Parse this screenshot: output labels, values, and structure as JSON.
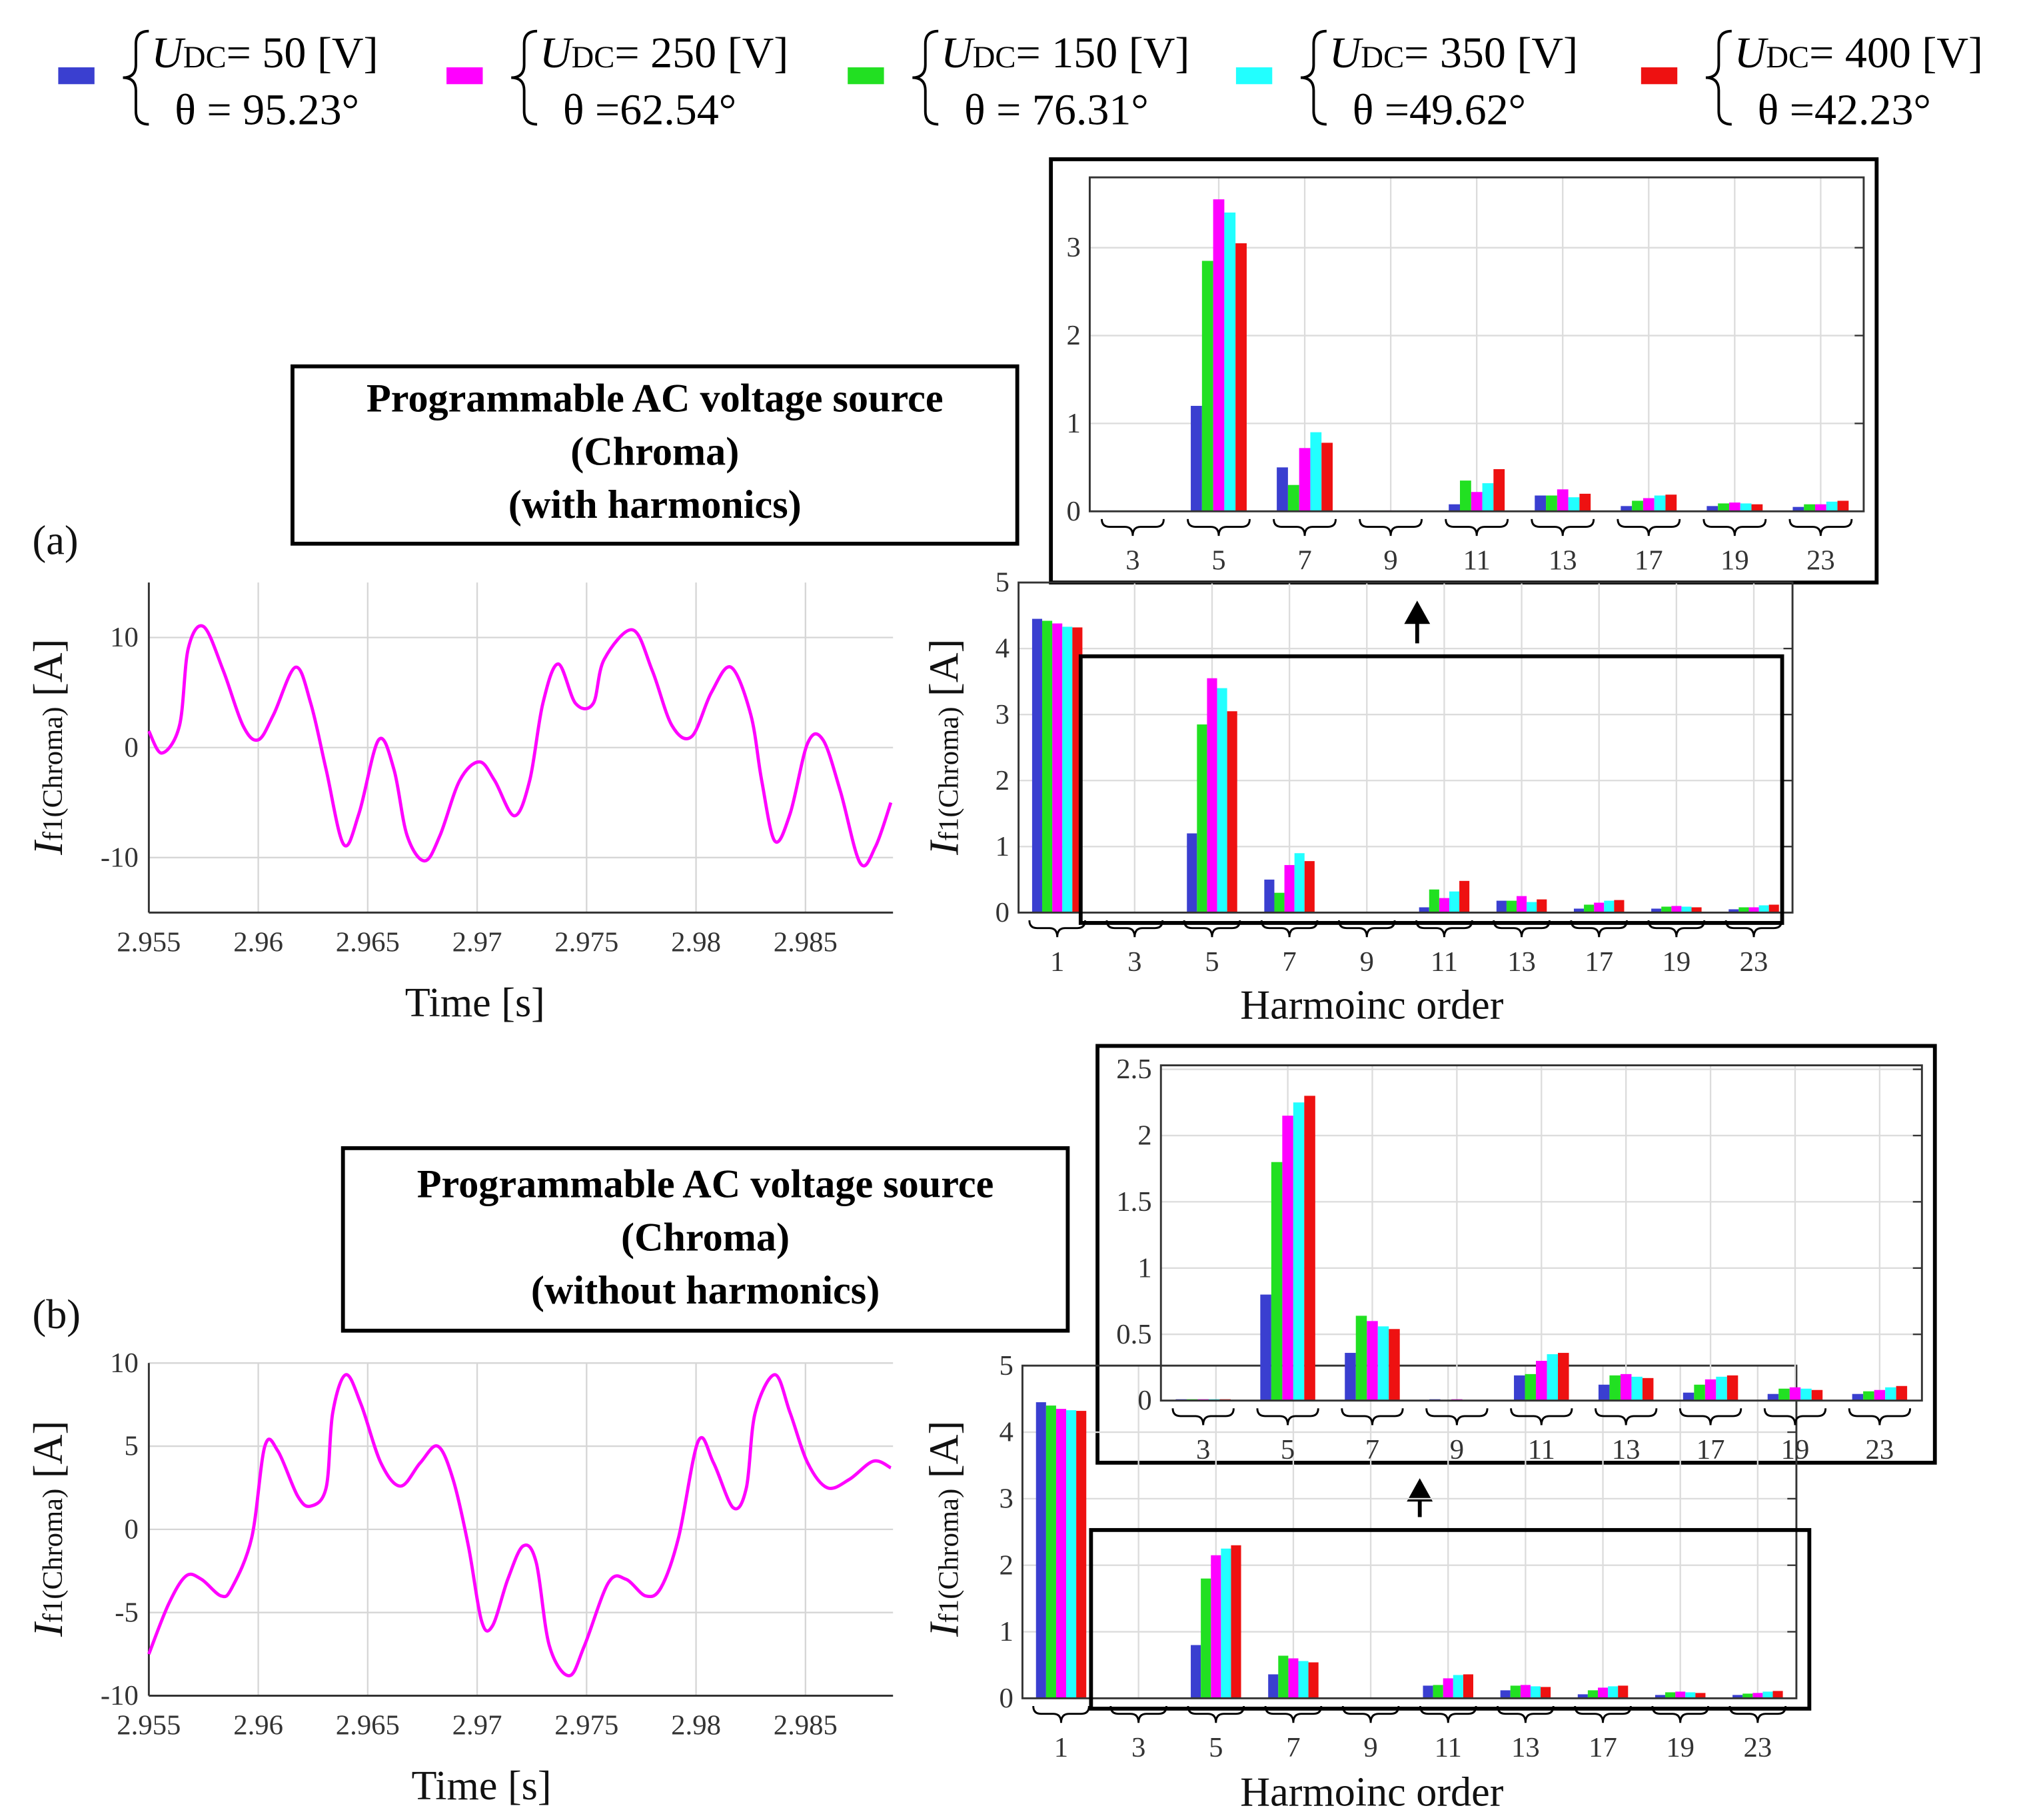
{
  "legend": [
    {
      "color": "#3a3fd0",
      "symbol": "U",
      "subscript": "DC",
      "udc": "= 50  [V]",
      "theta": "θ  = 95.23°"
    },
    {
      "color": "#ff00ff",
      "symbol": "U",
      "subscript": "DC",
      "udc": "= 250 [V]",
      "theta": "θ  =62.54°"
    },
    {
      "color": "#22e022",
      "symbol": "U",
      "subscript": "DC",
      "udc": "= 150 [V]",
      "theta": "θ  = 76.31°"
    },
    {
      "color": "#22ffff",
      "symbol": "U",
      "subscript": "DC",
      "udc": "= 350 [V]",
      "theta": "θ  =49.62°"
    },
    {
      "color": "#ee1111",
      "symbol": "U",
      "subscript": "DC",
      "udc": "=  400 [V]",
      "theta": "θ  =42.23°"
    }
  ],
  "panels": [
    {
      "label": "(a)",
      "source_box": [
        "Programmable AC voltage source",
        "(Chroma)",
        "(with harmonics)"
      ]
    },
    {
      "label": "(b)",
      "source_box": [
        "Programmable AC voltage source",
        "(Chroma)",
        "(without harmonics)"
      ]
    }
  ],
  "chart_data": [
    {
      "type": "line",
      "xlabel": "Time [s]",
      "ylabel": {
        "symbol": "I",
        "subscript": "f1(Chroma)",
        "unit": "[A]"
      },
      "x": [
        2.955,
        2.9556,
        2.9564,
        2.9568,
        2.9575,
        2.9584,
        2.9593,
        2.96,
        2.9607,
        2.9617,
        2.9624,
        2.9631,
        2.9639,
        2.9646,
        2.9655,
        2.9662,
        2.9668,
        2.9676,
        2.9683,
        2.9692,
        2.9701,
        2.9708,
        2.9717,
        2.9724,
        2.973,
        2.9737,
        2.9745,
        2.9753,
        2.9758,
        2.9771,
        2.978,
        2.9789,
        2.9798,
        2.9807,
        2.9816,
        2.9825,
        2.983,
        2.9836,
        2.9843,
        2.9851,
        2.9858,
        2.9866,
        2.9875,
        2.9882,
        2.9889
      ],
      "series": [
        {
          "color": "#ff00ff",
          "values": [
            1.5,
            -0.5,
            2,
            9,
            11,
            7,
            2,
            0.7,
            3,
            7.3,
            4,
            -2,
            -8.8,
            -6,
            0.7,
            -2,
            -8,
            -10.3,
            -8,
            -3,
            -1.3,
            -3,
            -6.2,
            -3,
            4,
            7.6,
            4,
            4,
            8,
            10.7,
            7,
            2,
            1,
            5,
            7.3,
            3,
            -3,
            -8.5,
            -6,
            0.4,
            0.7,
            -4,
            -10.5,
            -9,
            -5
          ]
        }
      ],
      "xlim": [
        2.955,
        2.989
      ],
      "ylim": [
        -15,
        15
      ],
      "xticks": [
        2.955,
        2.96,
        2.965,
        2.97,
        2.975,
        2.98,
        2.985
      ],
      "yticks": [
        -10,
        0,
        10
      ],
      "grid": true
    },
    {
      "type": "bar",
      "xlabel": "Harmoinc order",
      "ylabel": {
        "symbol": "I",
        "subscript": "f1(Chroma)",
        "unit": "[A]"
      },
      "categories": [
        "1",
        "3",
        "5",
        "7",
        "9",
        "11",
        "13",
        "17",
        "19",
        "23"
      ],
      "series": [
        {
          "values": [
            4.45,
            0.01,
            1.2,
            0.5,
            0.01,
            0.08,
            0.18,
            0.06,
            0.06,
            0.05
          ]
        },
        {
          "values": [
            4.38,
            0.01,
            3.55,
            0.72,
            0.01,
            0.22,
            0.25,
            0.15,
            0.1,
            0.08
          ]
        },
        {
          "values": [
            4.42,
            0.01,
            2.85,
            0.3,
            0.01,
            0.35,
            0.18,
            0.12,
            0.09,
            0.08
          ]
        },
        {
          "values": [
            4.33,
            0.01,
            3.4,
            0.9,
            0.01,
            0.32,
            0.16,
            0.18,
            0.09,
            0.11
          ]
        },
        {
          "values": [
            4.32,
            0.01,
            3.05,
            0.78,
            0.01,
            0.48,
            0.2,
            0.19,
            0.08,
            0.12
          ]
        }
      ],
      "ylim": [
        0,
        5
      ],
      "yticks": [
        0,
        1,
        2,
        3,
        4,
        5
      ],
      "grid": true
    },
    {
      "type": "bar",
      "categories": [
        "3",
        "5",
        "7",
        "9",
        "11",
        "13",
        "17",
        "19",
        "23"
      ],
      "series": [
        {
          "values": [
            0.01,
            1.2,
            0.5,
            0.01,
            0.08,
            0.18,
            0.06,
            0.06,
            0.05
          ]
        },
        {
          "values": [
            0.01,
            3.55,
            0.72,
            0.01,
            0.22,
            0.25,
            0.15,
            0.1,
            0.08
          ]
        },
        {
          "values": [
            0.01,
            2.85,
            0.3,
            0.01,
            0.35,
            0.18,
            0.12,
            0.09,
            0.08
          ]
        },
        {
          "values": [
            0.01,
            3.4,
            0.9,
            0.01,
            0.32,
            0.16,
            0.18,
            0.09,
            0.11
          ]
        },
        {
          "values": [
            0.01,
            3.05,
            0.78,
            0.01,
            0.48,
            0.2,
            0.19,
            0.08,
            0.12
          ]
        }
      ],
      "ylim": [
        0,
        3.8
      ],
      "yticks": [
        0,
        1,
        2,
        3
      ],
      "grid": true
    },
    {
      "type": "line",
      "xlabel": "Time [s]",
      "ylabel": {
        "symbol": "I",
        "subscript": "f1(Chroma)",
        "unit": "[A]"
      },
      "x": [
        2.955,
        2.9559,
        2.9567,
        2.9574,
        2.9583,
        2.9588,
        2.9597,
        2.9603,
        2.9609,
        2.9618,
        2.9624,
        2.9631,
        2.9634,
        2.964,
        2.9647,
        2.9656,
        2.9665,
        2.9674,
        2.9682,
        2.9689,
        2.9696,
        2.9702,
        2.9707,
        2.9714,
        2.9721,
        2.9727,
        2.9733,
        2.9742,
        2.9749,
        2.976,
        2.9768,
        2.9777,
        2.9784,
        2.9792,
        2.9801,
        2.9808,
        2.9817,
        2.9823,
        2.9827,
        2.9836,
        2.9843,
        2.9851,
        2.986,
        2.987,
        2.9881,
        2.9889
      ],
      "series": [
        {
          "color": "#ff00ff",
          "values": [
            -7.5,
            -4.5,
            -2.8,
            -3,
            -4,
            -3.5,
            -0.5,
            5,
            4.7,
            2,
            1.4,
            2.5,
            7,
            9.3,
            7.5,
            4,
            2.6,
            4,
            5,
            3,
            -1,
            -5.5,
            -5.8,
            -3,
            -1,
            -2,
            -7,
            -8.8,
            -7,
            -3.2,
            -3,
            -4,
            -3.5,
            -0.5,
            5.3,
            4,
            1.3,
            2.5,
            7,
            9.3,
            7,
            4,
            2.5,
            3,
            4.1,
            3.7
          ]
        }
      ],
      "xlim": [
        2.955,
        2.989
      ],
      "ylim": [
        -10,
        10
      ],
      "xticks": [
        2.955,
        2.96,
        2.965,
        2.97,
        2.975,
        2.98,
        2.985
      ],
      "yticks": [
        -10,
        -5,
        0,
        5,
        10
      ],
      "grid": true
    },
    {
      "type": "bar",
      "xlabel": "Harmoinc order",
      "ylabel": {
        "symbol": "I",
        "subscript": "f1(Chroma)",
        "unit": "[A]"
      },
      "categories": [
        "1",
        "3",
        "5",
        "7",
        "9",
        "11",
        "13",
        "17",
        "19",
        "23"
      ],
      "series": [
        {
          "values": [
            4.45,
            0.01,
            0.8,
            0.36,
            0.01,
            0.19,
            0.12,
            0.06,
            0.05,
            0.05
          ]
        },
        {
          "values": [
            4.35,
            0.01,
            2.15,
            0.6,
            0.01,
            0.3,
            0.2,
            0.16,
            0.1,
            0.08
          ]
        },
        {
          "values": [
            4.4,
            0.01,
            1.8,
            0.64,
            0.005,
            0.2,
            0.19,
            0.12,
            0.09,
            0.07
          ]
        },
        {
          "values": [
            4.33,
            0.01,
            2.25,
            0.56,
            0.005,
            0.35,
            0.18,
            0.18,
            0.09,
            0.1
          ]
        },
        {
          "values": [
            4.32,
            0.01,
            2.3,
            0.54,
            0.005,
            0.36,
            0.17,
            0.19,
            0.08,
            0.11
          ]
        }
      ],
      "ylim": [
        0,
        5
      ],
      "yticks": [
        0,
        1,
        2,
        3,
        4,
        5
      ],
      "grid": true
    },
    {
      "type": "bar",
      "categories": [
        "3",
        "5",
        "7",
        "9",
        "11",
        "13",
        "17",
        "19",
        "23"
      ],
      "series": [
        {
          "values": [
            0.01,
            0.8,
            0.36,
            0.01,
            0.19,
            0.12,
            0.06,
            0.05,
            0.05
          ]
        },
        {
          "values": [
            0.01,
            2.15,
            0.6,
            0.01,
            0.3,
            0.2,
            0.16,
            0.1,
            0.08
          ]
        },
        {
          "values": [
            0.01,
            1.8,
            0.64,
            0.005,
            0.2,
            0.19,
            0.12,
            0.09,
            0.07
          ]
        },
        {
          "values": [
            0.01,
            2.25,
            0.56,
            0.005,
            0.35,
            0.18,
            0.18,
            0.09,
            0.1
          ]
        },
        {
          "values": [
            0.01,
            2.3,
            0.54,
            0.005,
            0.36,
            0.17,
            0.19,
            0.08,
            0.11
          ]
        }
      ],
      "ylim": [
        0,
        2.53
      ],
      "yticks": [
        0,
        0.5,
        1,
        1.5,
        2,
        2.5
      ],
      "grid": true
    }
  ]
}
